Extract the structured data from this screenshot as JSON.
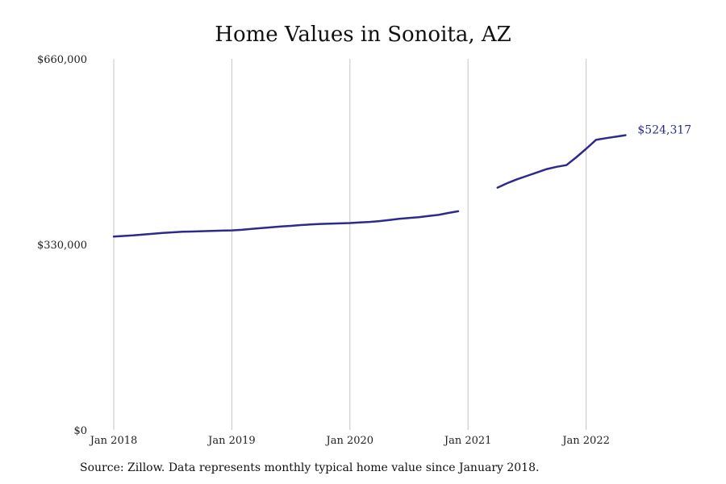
{
  "chart_data": {
    "type": "line",
    "title": "Home Values in Sonoita, AZ",
    "source_note": "Source: Zillow. Data represents monthly typical home value since January 2018.",
    "xlabel": "",
    "ylabel": "",
    "x_range": [
      "2018-01",
      "2022-12"
    ],
    "ylim": [
      0,
      660000
    ],
    "y_ticks": [
      {
        "value": 0,
        "label": "$0"
      },
      {
        "value": 330000,
        "label": "$330,000"
      },
      {
        "value": 660000,
        "label": "$660,000"
      }
    ],
    "x_ticks": [
      {
        "value": "2018-01",
        "label": "Jan 2018"
      },
      {
        "value": "2019-01",
        "label": "Jan 2019"
      },
      {
        "value": "2020-01",
        "label": "Jan 2020"
      },
      {
        "value": "2021-01",
        "label": "Jan 2021"
      },
      {
        "value": "2022-01",
        "label": "Jan 2022"
      }
    ],
    "grid": {
      "vertical": true,
      "horizontal": false
    },
    "series": [
      {
        "color": "#2d2a8c",
        "segments": [
          [
            [
              "2018-01",
              344000
            ],
            [
              "2018-02",
              345000
            ],
            [
              "2018-03",
              346000
            ],
            [
              "2018-04",
              347500
            ],
            [
              "2018-05",
              349000
            ],
            [
              "2018-06",
              350500
            ],
            [
              "2018-07",
              351500
            ],
            [
              "2018-08",
              352500
            ],
            [
              "2018-09",
              353000
            ],
            [
              "2018-10",
              353500
            ],
            [
              "2018-11",
              354000
            ],
            [
              "2018-12",
              354500
            ],
            [
              "2019-01",
              355000
            ],
            [
              "2019-02",
              356000
            ],
            [
              "2019-03",
              357500
            ],
            [
              "2019-04",
              359000
            ],
            [
              "2019-05",
              360500
            ],
            [
              "2019-06",
              362000
            ],
            [
              "2019-07",
              363000
            ],
            [
              "2019-08",
              364500
            ],
            [
              "2019-09",
              365500
            ],
            [
              "2019-10",
              366500
            ],
            [
              "2019-11",
              367000
            ],
            [
              "2019-12",
              367500
            ],
            [
              "2020-01",
              368000
            ],
            [
              "2020-02",
              369000
            ],
            [
              "2020-03",
              370000
            ],
            [
              "2020-04",
              371500
            ],
            [
              "2020-05",
              373500
            ],
            [
              "2020-06",
              375500
            ],
            [
              "2020-07",
              377000
            ],
            [
              "2020-08",
              378500
            ],
            [
              "2020-09",
              380500
            ],
            [
              "2020-10",
              382500
            ],
            [
              "2020-11",
              386000
            ],
            [
              "2020-12",
              389000
            ]
          ],
          [
            [
              "2021-04",
              431000
            ],
            [
              "2021-05",
              439000
            ],
            [
              "2021-06",
              446000
            ],
            [
              "2021-07",
              452000
            ],
            [
              "2021-08",
              458000
            ],
            [
              "2021-09",
              464000
            ],
            [
              "2021-10",
              468000
            ],
            [
              "2021-11",
              471000
            ],
            [
              "2021-12",
              485000
            ],
            [
              "2022-01",
              500000
            ],
            [
              "2022-02",
              516000
            ],
            [
              "2022-03",
              519000
            ],
            [
              "2022-04",
              521500
            ],
            [
              "2022-05",
              524317
            ]
          ]
        ],
        "end_label": "$524,317"
      }
    ]
  }
}
